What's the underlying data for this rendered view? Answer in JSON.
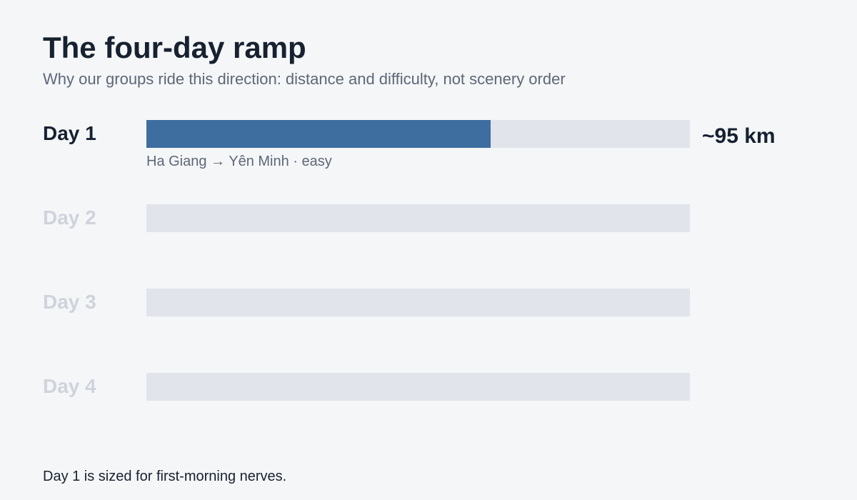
{
  "chart_data": {
    "type": "bar",
    "orientation": "horizontal",
    "title": "The four-day ramp",
    "subtitle": "Why our groups ride this direction: distance and difficulty, not scenery order",
    "categories": [
      "Day 1",
      "Day 2",
      "Day 3",
      "Day 4"
    ],
    "value_unit": "km",
    "value_max": 150,
    "bars": [
      {
        "label": "Day 1",
        "value": 95,
        "value_label": "~95 km",
        "route": "Ha Giang → Yên Minh · easy",
        "revealed": true
      },
      {
        "label": "Day 2",
        "value": null,
        "value_label": "",
        "route": "",
        "revealed": false
      },
      {
        "label": "Day 3",
        "value": null,
        "value_label": "",
        "route": "",
        "revealed": false
      },
      {
        "label": "Day 4",
        "value": null,
        "value_label": "",
        "route": "",
        "revealed": false
      }
    ],
    "footnote": "Day 1 is sized for first-morning nerves.",
    "colors": {
      "background": "#f5f6f8",
      "fill": "#3e6e9f",
      "track": "#e1e4eb",
      "active_text": "#172130",
      "muted_text": "#cfd3db",
      "secondary_text": "#5d6777"
    },
    "grid": false,
    "legend": "none"
  }
}
